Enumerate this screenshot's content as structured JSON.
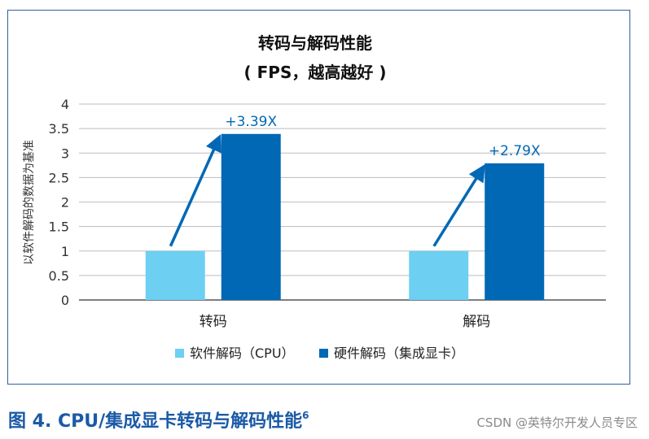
{
  "chart_data": {
    "type": "bar",
    "title": "转码与解码性能",
    "subtitle": "( FPS，越高越好 )",
    "ylabel": "以软件解码的数据为基准",
    "xlabel": "",
    "ylim": [
      0,
      4
    ],
    "yticks": [
      "0",
      "0.5",
      "1",
      "1.5",
      "2",
      "2.5",
      "3",
      "3.5",
      "4"
    ],
    "grid": true,
    "legend_position": "bottom",
    "categories": [
      "转码",
      "解码"
    ],
    "series": [
      {
        "name": "软件解码（CPU）",
        "color": "#6dcff2",
        "values": [
          1,
          1
        ]
      },
      {
        "name": "硬件解码（集成显卡）",
        "color": "#0068b5",
        "values": [
          3.39,
          2.79
        ]
      }
    ],
    "annotations": [
      "+3.39X",
      "+2.79X"
    ],
    "annotation_color": "#0068b5"
  },
  "figure_caption": "图 4. CPU/集成显卡转码与解码性能",
  "figure_caption_note": "6",
  "watermark": "CSDN @英特尔开发人员专区"
}
